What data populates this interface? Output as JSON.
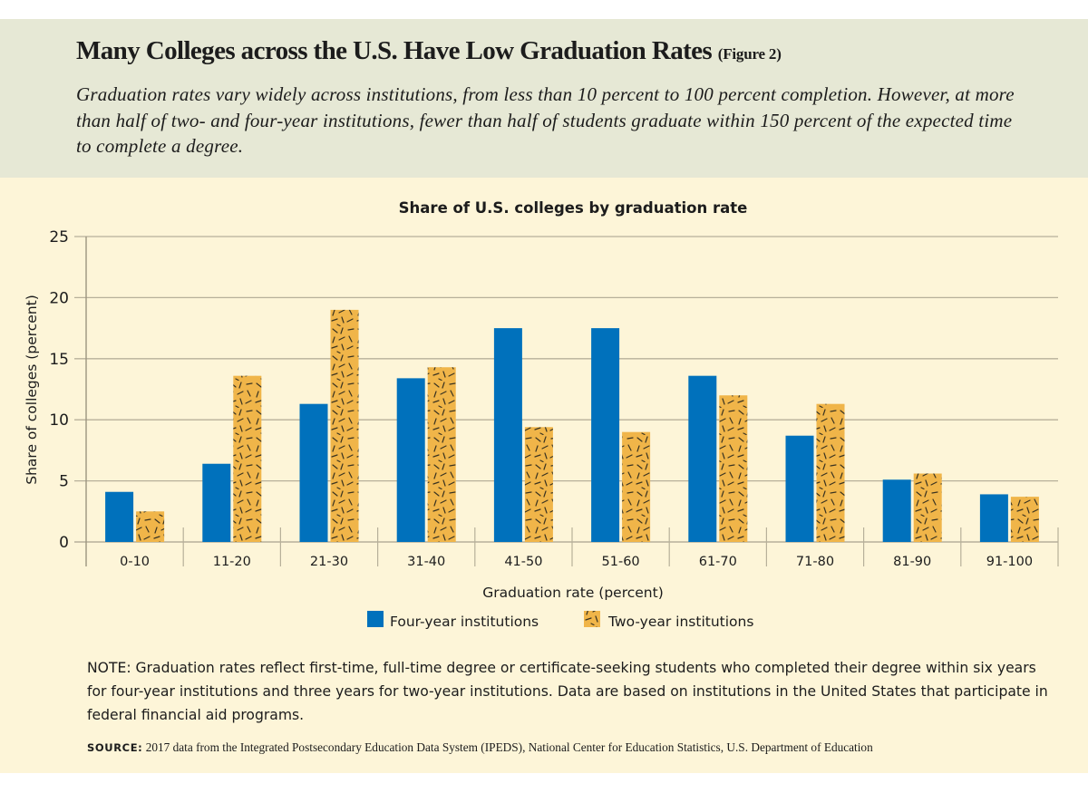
{
  "header": {
    "title": "Many Colleges across the U.S. Have Low Graduation Rates",
    "figure_label": "(Figure 2)",
    "subtitle": "Graduation rates vary widely across institutions, from less than 10 percent to 100 percent completion. However, at more than half of two- and four-year institutions, fewer than half of students graduate within 150 percent of the expected time to complete a degree."
  },
  "colors": {
    "four_year": "#0071bc",
    "two_year": "#f0b549",
    "texture": "#3a3320",
    "header_bg": "#e6e8d5",
    "panel_bg": "#fdf5d8",
    "grid": "#b7b09a"
  },
  "chart_data": {
    "type": "bar",
    "title": "Share of U.S. colleges by graduation rate",
    "xlabel": "Graduation rate (percent)",
    "ylabel": "Share of colleges (percent)",
    "ylim": [
      0,
      25
    ],
    "yticks": [
      0,
      5,
      10,
      15,
      20,
      25
    ],
    "grid": true,
    "legend_position": "bottom-center",
    "categories": [
      "0-10",
      "11-20",
      "21-30",
      "31-40",
      "41-50",
      "51-60",
      "61-70",
      "71-80",
      "81-90",
      "91-100"
    ],
    "series": [
      {
        "name": "Four-year institutions",
        "pattern": "solid",
        "values": [
          4.1,
          6.4,
          11.3,
          13.4,
          17.5,
          17.5,
          13.6,
          8.7,
          5.1,
          3.9
        ]
      },
      {
        "name": "Two-year institutions",
        "pattern": "textured",
        "values": [
          2.5,
          13.6,
          19.0,
          14.3,
          9.4,
          9.0,
          12.0,
          11.3,
          5.6,
          3.7
        ]
      }
    ]
  },
  "note": "NOTE: Graduation rates reflect first-time, full-time degree or certificate-seeking students who completed their degree within six years for four-year institutions and three years for two-year institutions. Data are based on institutions in the United States that participate in federal financial aid programs.",
  "source": {
    "label": "SOURCE:",
    "text": "2017 data from the Integrated Postsecondary Education Data System (IPEDS), National Center for Education Statistics, U.S. Department of Education"
  }
}
